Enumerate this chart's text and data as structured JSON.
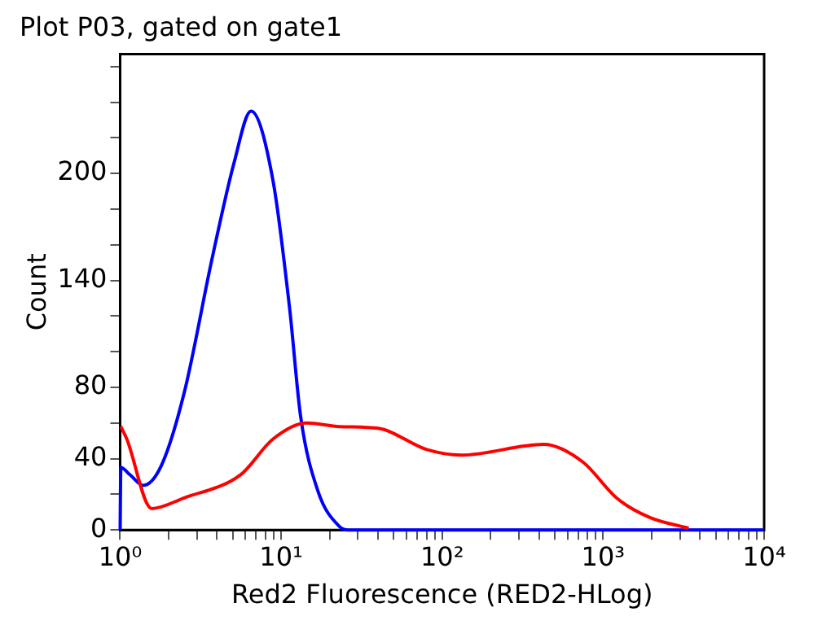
{
  "chart_data": {
    "type": "line",
    "title": "Plot P03, gated on gate1",
    "xlabel": "Red2 Fluorescence (RED2-HLog)",
    "ylabel": "Count",
    "log": "x",
    "grid": false,
    "legend": false,
    "marker": "none",
    "line_style": "solid",
    "xlim": [
      1,
      10000
    ],
    "ylim": [
      0,
      267
    ],
    "xticks": [
      {
        "value": 1,
        "label": "10⁰"
      },
      {
        "value": 2,
        "label": null
      },
      {
        "value": 3,
        "label": null
      },
      {
        "value": 4,
        "label": null
      },
      {
        "value": 5,
        "label": null
      },
      {
        "value": 6,
        "label": null
      },
      {
        "value": 7,
        "label": null
      },
      {
        "value": 8,
        "label": null
      },
      {
        "value": 9,
        "label": null
      },
      {
        "value": 10,
        "label": "10¹"
      },
      {
        "value": 20,
        "label": null
      },
      {
        "value": 30,
        "label": null
      },
      {
        "value": 40,
        "label": null
      },
      {
        "value": 50,
        "label": null
      },
      {
        "value": 60,
        "label": null
      },
      {
        "value": 70,
        "label": null
      },
      {
        "value": 80,
        "label": null
      },
      {
        "value": 90,
        "label": null
      },
      {
        "value": 100,
        "label": "10²"
      },
      {
        "value": 200,
        "label": null
      },
      {
        "value": 300,
        "label": null
      },
      {
        "value": 400,
        "label": null
      },
      {
        "value": 500,
        "label": null
      },
      {
        "value": 600,
        "label": null
      },
      {
        "value": 700,
        "label": null
      },
      {
        "value": 800,
        "label": null
      },
      {
        "value": 900,
        "label": null
      },
      {
        "value": 1000,
        "label": "10³"
      },
      {
        "value": 2000,
        "label": null
      },
      {
        "value": 3000,
        "label": null
      },
      {
        "value": 4000,
        "label": null
      },
      {
        "value": 5000,
        "label": null
      },
      {
        "value": 6000,
        "label": null
      },
      {
        "value": 7000,
        "label": null
      },
      {
        "value": 8000,
        "label": null
      },
      {
        "value": 9000,
        "label": null
      },
      {
        "value": 10000,
        "label": "10⁴"
      }
    ],
    "yticks": [
      0,
      {
        "value": 20,
        "label": null
      },
      40,
      {
        "value": 60,
        "label": null
      },
      80,
      {
        "value": 100,
        "label": null
      },
      {
        "value": 120,
        "label": null
      },
      140,
      {
        "value": 160,
        "label": null
      },
      {
        "value": 180,
        "label": null
      },
      200,
      {
        "value": 220,
        "label": null
      },
      {
        "value": 240,
        "label": null
      },
      {
        "value": 260,
        "label": null
      }
    ],
    "series": [
      {
        "color": "#ff0000",
        "x": [
          1.01,
          1.1,
          1.57,
          2.5,
          5.6,
          8.9,
          14.4,
          23,
          40,
          81,
          132,
          427,
          751,
          1210,
          1950,
          3400
        ],
        "values": [
          58,
          51,
          12,
          18,
          31,
          51,
          60,
          58,
          57,
          45,
          42,
          48,
          38,
          18,
          7,
          1
        ]
      },
      {
        "color": "#0000ff",
        "x": [
          1,
          1.01,
          1.15,
          1.39,
          1.8,
          2.5,
          3.74,
          5.1,
          6.5,
          8.9,
          11.3,
          13.2,
          16.9,
          23,
          26,
          10000
        ],
        "values": [
          0,
          35,
          31,
          25,
          36,
          77,
          153,
          206,
          235,
          196,
          124,
          64,
          22,
          2,
          0,
          0
        ]
      }
    ]
  }
}
